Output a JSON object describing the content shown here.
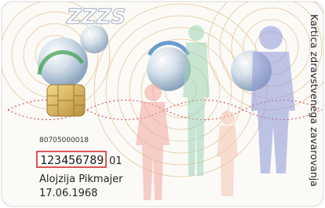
{
  "card": {
    "logo": "ZZZS",
    "card_number": "80705000018",
    "insurance_number": "123456789",
    "suffix": "01",
    "name": "Alojzija Pikmajer",
    "birth_date": "17.06.1968",
    "vertical_title": "Kartica zdravstvenega zavarovanja"
  }
}
